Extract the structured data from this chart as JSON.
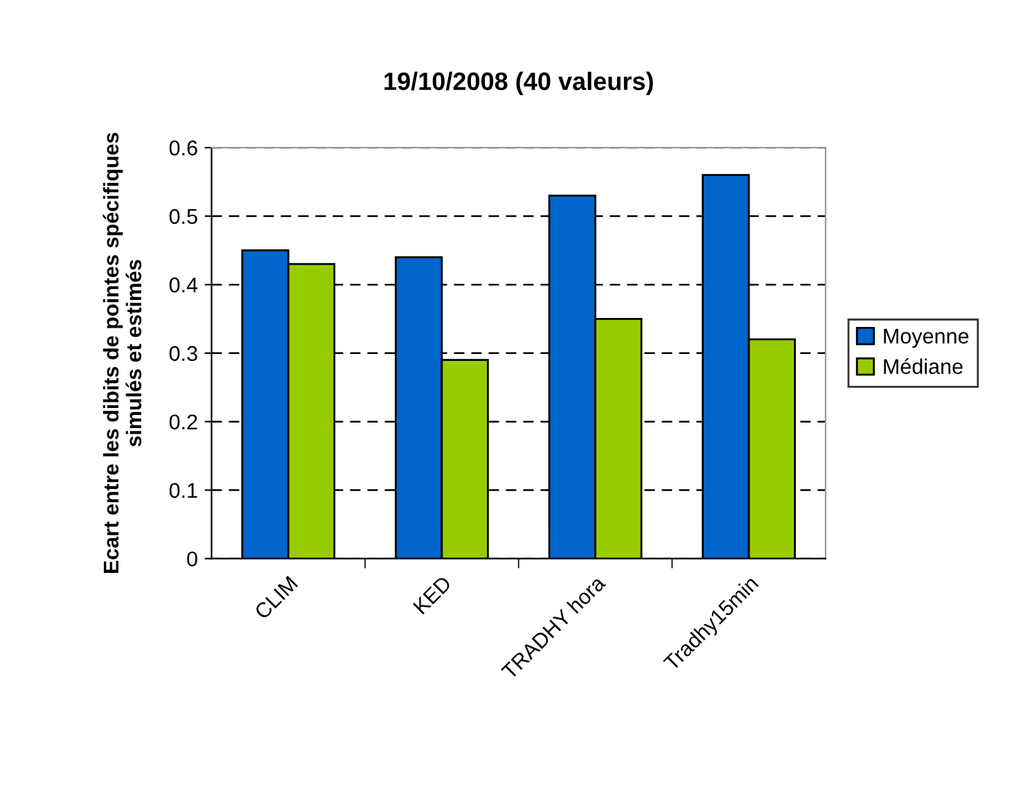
{
  "chart_data": {
    "type": "bar",
    "title": "19/10/2008 (40 valeurs)",
    "ylabel": "Ecart entre les dibits de pointes spécifiques\nsimulés et estimés",
    "categories": [
      "CLIM",
      "KED",
      "TRADHY hora",
      "Tradhy15min"
    ],
    "series": [
      {
        "name": "Moyenne",
        "color": "#0066cc",
        "values": [
          0.45,
          0.44,
          0.53,
          0.56
        ]
      },
      {
        "name": "Médiane",
        "color": "#99cc00",
        "values": [
          0.43,
          0.29,
          0.35,
          0.32
        ]
      }
    ],
    "ylim": [
      0,
      0.6
    ],
    "yticks": [
      0,
      0.1,
      0.2,
      0.3,
      0.4,
      0.5,
      0.6
    ],
    "grid": "y",
    "legend": "right"
  }
}
